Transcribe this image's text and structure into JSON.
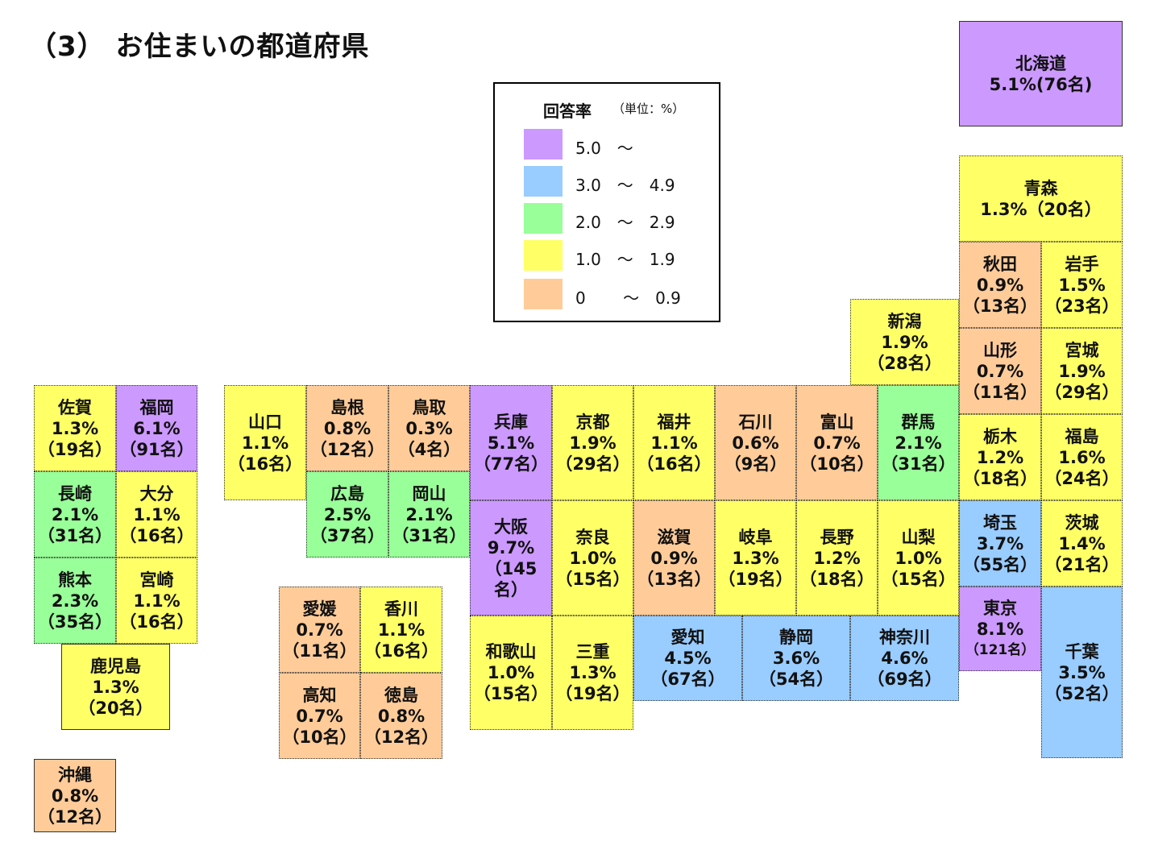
{
  "title": "（3） お住まいの都道府県",
  "legend": {
    "title": "回答率",
    "unit": "（単位：%）",
    "items": [
      {
        "label": "5.0　～",
        "color": "#cc99ff"
      },
      {
        "label": "3.0　～　4.9",
        "color": "#99ccff"
      },
      {
        "label": "2.0　～　2.9",
        "color": "#99ff99"
      },
      {
        "label": "1.0　～　1.9",
        "color": "#ffff66"
      },
      {
        "label": "0 　　～　0.9",
        "color": "#ffcc99"
      }
    ]
  },
  "prefectures": {
    "hokkaido": {
      "name": "北海道",
      "rate": "5.1%(76名)"
    },
    "aomori": {
      "name": "青森",
      "rate": "1.3%（20名）"
    },
    "akita": {
      "name": "秋田",
      "rate": "0.9%",
      "count": "（13名）"
    },
    "iwate": {
      "name": "岩手",
      "rate": "1.5%",
      "count": "（23名）"
    },
    "yamagata": {
      "name": "山形",
      "rate": "0.7%",
      "count": "（11名）"
    },
    "miyagi": {
      "name": "宮城",
      "rate": "1.9%",
      "count": "（29名）"
    },
    "tochigi": {
      "name": "栃木",
      "rate": "1.2%",
      "count": "（18名）"
    },
    "fukushima": {
      "name": "福島",
      "rate": "1.6%",
      "count": "（24名）"
    },
    "saitama": {
      "name": "埼玉",
      "rate": "3.7%",
      "count": "（55名）"
    },
    "ibaraki": {
      "name": "茨城",
      "rate": "1.4%",
      "count": "（21名）"
    },
    "tokyo": {
      "name": "東京",
      "rate": "8.1%",
      "count": "（121名）"
    },
    "chiba": {
      "name": "千葉",
      "rate": "3.5%",
      "count": "（52名）"
    },
    "niigata": {
      "name": "新潟",
      "rate": "1.9%",
      "count": "（28名）"
    },
    "gunma": {
      "name": "群馬",
      "rate": "2.1%",
      "count": "（31名）"
    },
    "toyama": {
      "name": "富山",
      "rate": "0.7%",
      "count": "（10名）"
    },
    "ishikawa": {
      "name": "石川",
      "rate": "0.6%",
      "count": "（9名）"
    },
    "fukui": {
      "name": "福井",
      "rate": "1.1%",
      "count": "（16名）"
    },
    "kyoto": {
      "name": "京都",
      "rate": "1.9%",
      "count": "（29名）"
    },
    "hyogo": {
      "name": "兵庫",
      "rate": "5.1%",
      "count": "（77名）"
    },
    "tottori": {
      "name": "鳥取",
      "rate": "0.3%",
      "count": "（4名）"
    },
    "shimane": {
      "name": "島根",
      "rate": "0.8%",
      "count": "（12名）"
    },
    "yamaguchi": {
      "name": "山口",
      "rate": "1.1%",
      "count": "（16名）"
    },
    "hiroshima": {
      "name": "広島",
      "rate": "2.5%",
      "count": "（37名）"
    },
    "okayama": {
      "name": "岡山",
      "rate": "2.1%",
      "count": "（31名）"
    },
    "osaka": {
      "name": "大阪",
      "rate": "9.7%",
      "count": "（145名）"
    },
    "nara": {
      "name": "奈良",
      "rate": "1.0%",
      "count": "（15名）"
    },
    "shiga": {
      "name": "滋賀",
      "rate": "0.9%",
      "count": "（13名）"
    },
    "gifu": {
      "name": "岐阜",
      "rate": "1.3%",
      "count": "（19名）"
    },
    "nagano": {
      "name": "長野",
      "rate": "1.2%",
      "count": "（18名）"
    },
    "yamanashi": {
      "name": "山梨",
      "rate": "1.0%",
      "count": "（15名）"
    },
    "wakayama": {
      "name": "和歌山",
      "rate": "1.0%",
      "count": "（15名）"
    },
    "mie": {
      "name": "三重",
      "rate": "1.3%",
      "count": "（19名）"
    },
    "aichi": {
      "name": "愛知",
      "rate": "4.5%",
      "count": "（67名）"
    },
    "shizuoka": {
      "name": "静岡",
      "rate": "3.6%",
      "count": "（54名）"
    },
    "kanagawa": {
      "name": "神奈川",
      "rate": "4.6%",
      "count": "（69名）"
    },
    "ehime": {
      "name": "愛媛",
      "rate": "0.7%",
      "count": "（11名）"
    },
    "kagawa": {
      "name": "香川",
      "rate": "1.1%",
      "count": "（16名）"
    },
    "kochi": {
      "name": "高知",
      "rate": "0.7%",
      "count": "（10名）"
    },
    "tokushima": {
      "name": "徳島",
      "rate": "0.8%",
      "count": "（12名）"
    },
    "saga": {
      "name": "佐賀",
      "rate": "1.3%",
      "count": "（19名）"
    },
    "fukuoka": {
      "name": "福岡",
      "rate": "6.1%",
      "count": "（91名）"
    },
    "nagasaki": {
      "name": "長崎",
      "rate": "2.1%",
      "count": "（31名）"
    },
    "oita": {
      "name": "大分",
      "rate": "1.1%",
      "count": "（16名）"
    },
    "kumamoto": {
      "name": "熊本",
      "rate": "2.3%",
      "count": "（35名）"
    },
    "miyazaki": {
      "name": "宮崎",
      "rate": "1.1%",
      "count": "（16名）"
    },
    "kagoshima": {
      "name": "鹿児島",
      "rate": "1.3%",
      "count": "（20名）"
    },
    "okinawa": {
      "name": "沖縄",
      "rate": "0.8%",
      "count": "（12名）"
    }
  }
}
